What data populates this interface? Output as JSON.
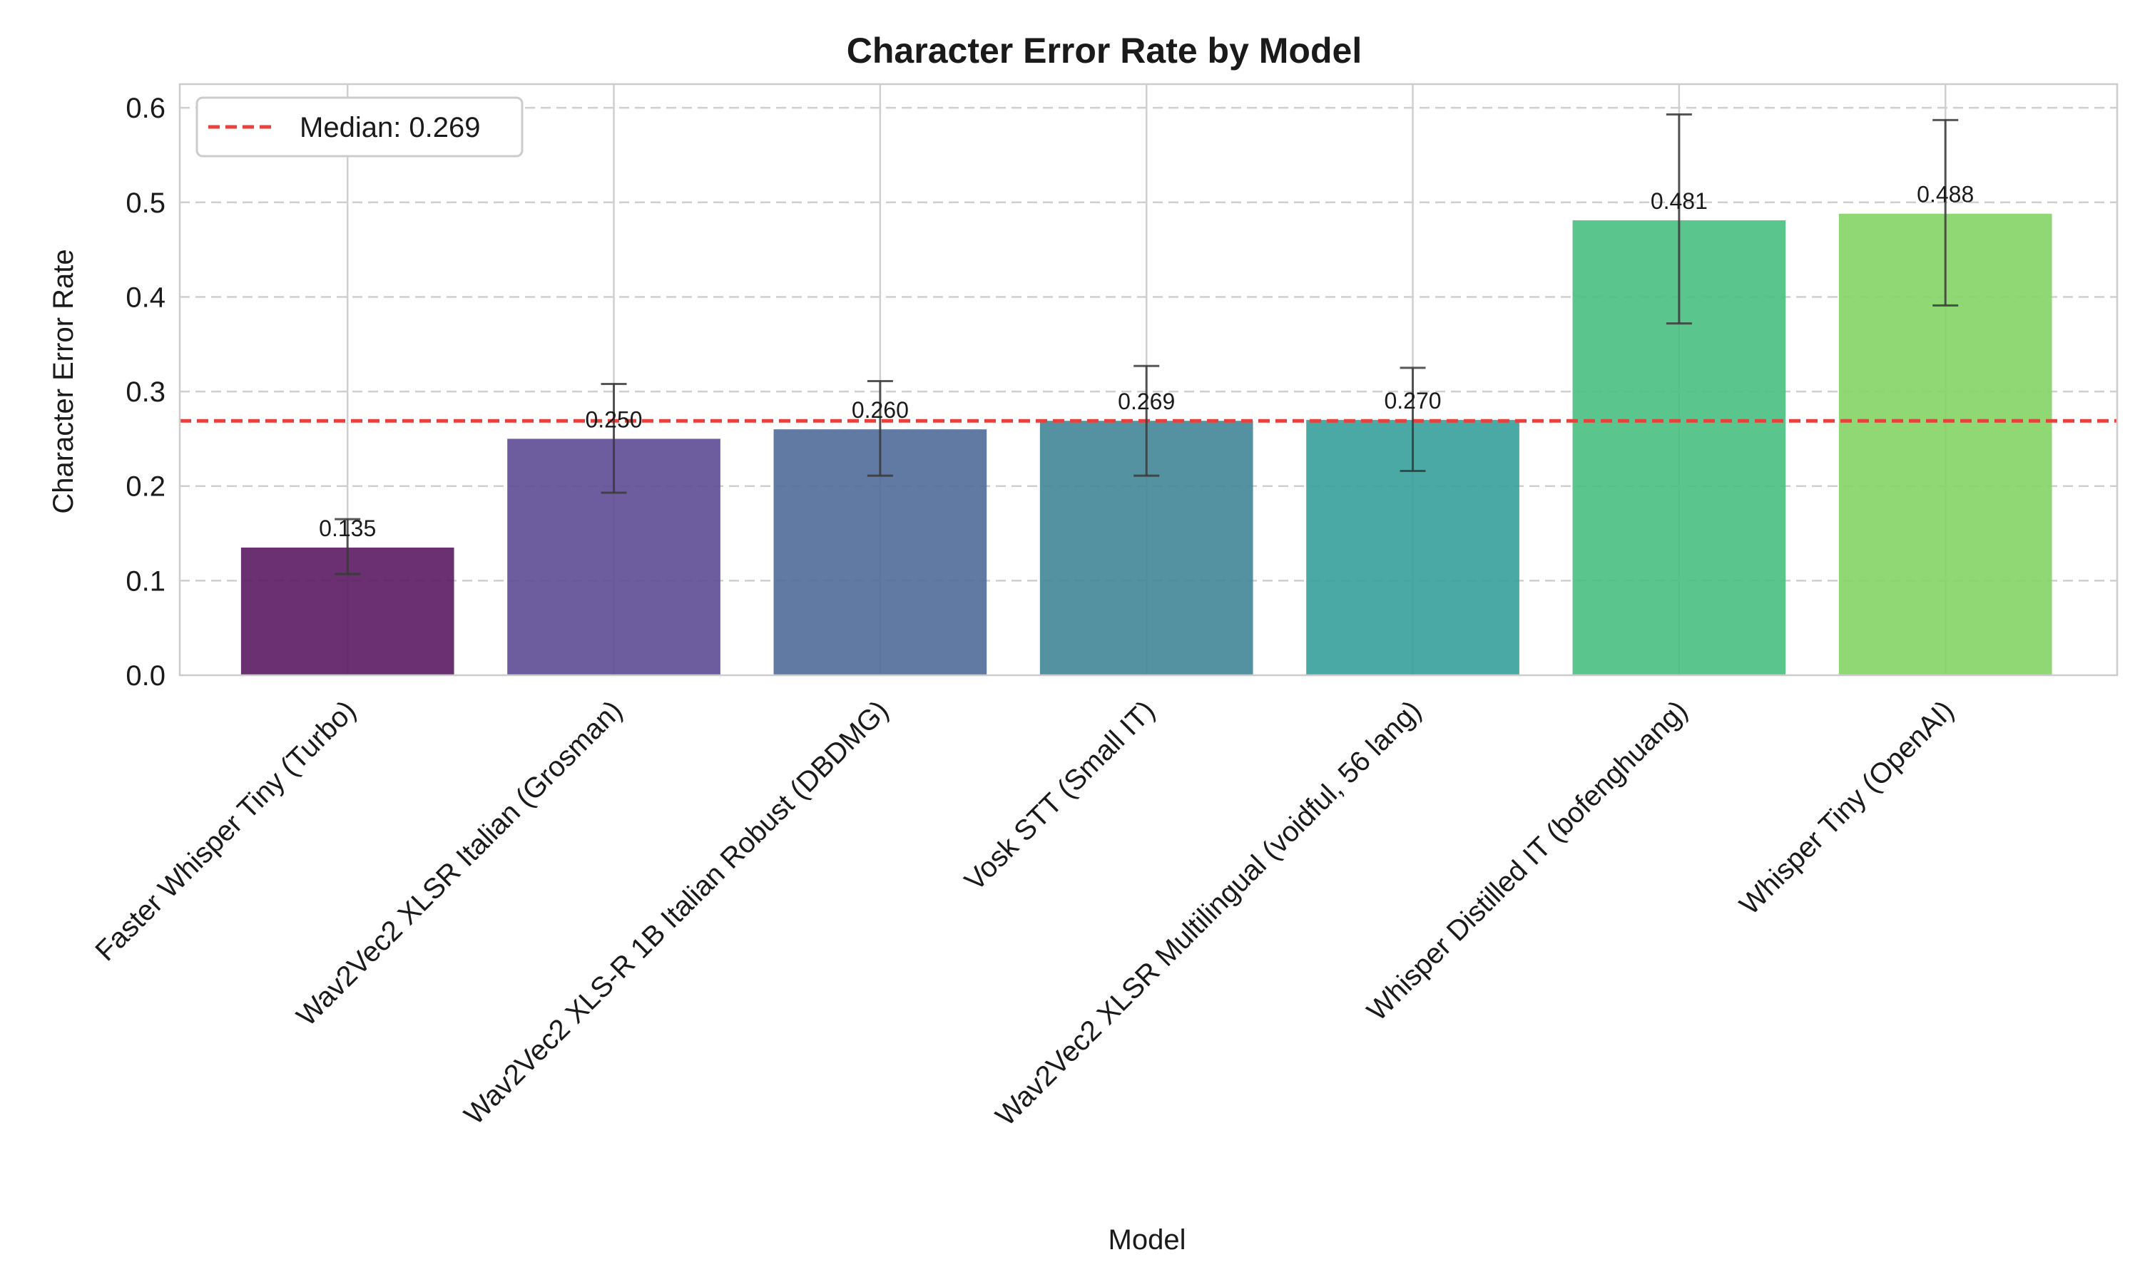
{
  "chart_data": {
    "type": "bar",
    "title": "Character Error Rate by Model",
    "xlabel": "Model",
    "ylabel": "Character Error Rate",
    "ylim": [
      0,
      0.625
    ],
    "yticks": [
      0.0,
      0.1,
      0.2,
      0.3,
      0.4,
      0.5,
      0.6
    ],
    "ytick_labels": [
      "0.0",
      "0.1",
      "0.2",
      "0.3",
      "0.4",
      "0.5",
      "0.6"
    ],
    "grid": true,
    "legend_position": "top-left",
    "categories": [
      "Faster Whisper Tiny (Turbo)",
      "Wav2Vec2 XLSR Italian (Grosman)",
      "Wav2Vec2 XLS-R 1B Italian Robust (DBDMG)",
      "Vosk STT (Small IT)",
      "Wav2Vec2 XLSR Multilingual (voidful, 56 lang)",
      "Whisper Distilled IT (bofenghuang)",
      "Whisper Tiny (OpenAI)"
    ],
    "values": [
      0.135,
      0.25,
      0.26,
      0.269,
      0.27,
      0.481,
      0.488
    ],
    "value_labels": [
      "0.135",
      "0.250",
      "0.260",
      "0.269",
      "0.270",
      "0.481",
      "0.488"
    ],
    "error_low": [
      0.107,
      0.193,
      0.211,
      0.211,
      0.216,
      0.372,
      0.391
    ],
    "error_high": [
      0.165,
      0.308,
      0.311,
      0.327,
      0.325,
      0.593,
      0.587
    ],
    "bar_colors": [
      "#5a1a62",
      "#5d4a94",
      "#4f6b99",
      "#418698",
      "#36a09a",
      "#48c082",
      "#83d465"
    ],
    "median": 0.269,
    "median_label": "Median: 0.269",
    "median_color": "#e8413c"
  }
}
